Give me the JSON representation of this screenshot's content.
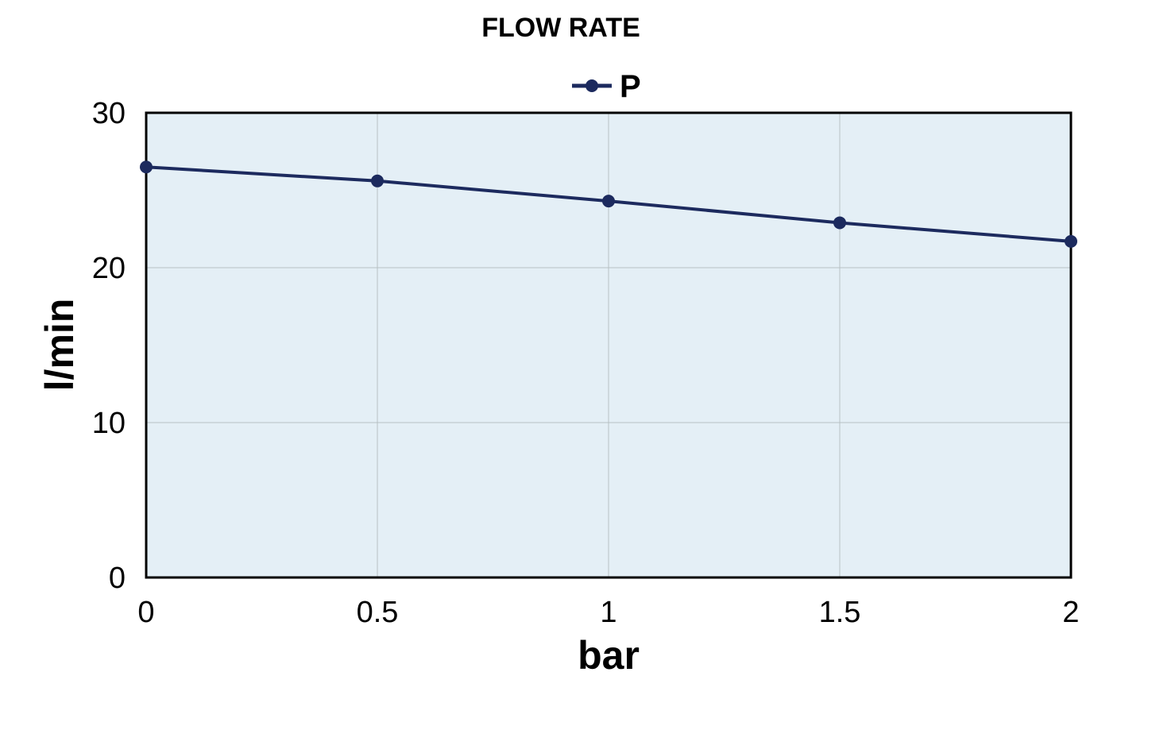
{
  "chart_data": {
    "type": "line",
    "title": "FLOW RATE",
    "xlabel": "bar",
    "ylabel": "l/min",
    "xlim": [
      0,
      2
    ],
    "ylim": [
      0,
      30
    ],
    "x_ticks": [
      "0",
      "0.5",
      "1",
      "1.5",
      "2"
    ],
    "y_ticks": [
      "0",
      "10",
      "20",
      "30"
    ],
    "x": [
      0,
      0.5,
      1,
      1.5,
      2
    ],
    "series": [
      {
        "name": "P",
        "values": [
          26.5,
          25.6,
          24.3,
          22.9,
          21.7
        ],
        "color": "#1c2a5e"
      }
    ],
    "grid": true,
    "legend_position": "top-center",
    "plot_background": "#e4eff6"
  }
}
